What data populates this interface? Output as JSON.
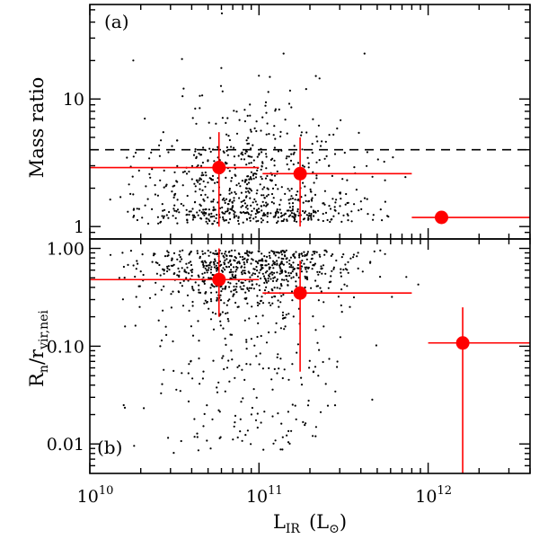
{
  "chart_data": [
    {
      "type": "scatter",
      "panel_label": "(a)",
      "ylabel": "Mass ratio",
      "yscale": "log",
      "ylim": [
        0.8,
        55
      ],
      "xscale": "log",
      "xlim": [
        10000000000.0,
        4000000000000.0
      ],
      "yticks": [
        1,
        10
      ],
      "ytick_labels": [
        "1",
        "10"
      ],
      "reference_line": {
        "y": 4,
        "style": "dashed"
      },
      "summary_points": [
        {
          "x": 58000000000.0,
          "y": 2.9,
          "xerr": [
            10000000000.0,
            100000000000.0
          ],
          "yerr": [
            1.0,
            5.5
          ]
        },
        {
          "x": 175000000000.0,
          "y": 2.6,
          "xerr": [
            105000000000.0,
            800000000000.0
          ],
          "yerr": [
            1.0,
            5.0
          ]
        },
        {
          "x": 1200000000000.0,
          "y": 1.18,
          "xerr": [
            800000000000.0,
            4000000000000.0
          ],
          "yerr": [
            1.18,
            1.18
          ]
        }
      ],
      "points_note": "Cloud of small black dots, roughly 800 galaxies, concentrated at L_IR ~ 3e10 to 3e11 with mass ratios between 1 and ~40."
    },
    {
      "type": "scatter",
      "panel_label": "(b)",
      "ylabel": "R_n/r_vir,nei",
      "ylabel_main": "R",
      "ylabel_sub1": "n",
      "ylabel_mid": "/r",
      "ylabel_sub2": "vir,nei",
      "yscale": "log",
      "ylim": [
        0.005,
        1.25
      ],
      "xscale": "log",
      "xlim": [
        10000000000.0,
        4000000000000.0
      ],
      "yticks": [
        0.01,
        0.1,
        1.0
      ],
      "ytick_labels": [
        "0.01",
        "0.10",
        "1.00"
      ],
      "summary_points": [
        {
          "x": 58000000000.0,
          "y": 0.48,
          "xerr": [
            10000000000.0,
            100000000000.0
          ],
          "yerr": [
            0.2,
            1.0
          ]
        },
        {
          "x": 175000000000.0,
          "y": 0.35,
          "xerr": [
            105000000000.0,
            800000000000.0
          ],
          "yerr": [
            0.055,
            0.75
          ]
        },
        {
          "x": 1600000000000.0,
          "y": 0.108,
          "xerr": [
            1000000000000.0,
            4000000000000.0
          ],
          "yerr": [
            0.005,
            0.25
          ]
        }
      ],
      "points_note": "Dense band of small black dots near R_n/r_vir ~ 0.3-1.0, sparser tail down to ~0.006."
    }
  ],
  "xaxis": {
    "label_main": "L",
    "label_sub": "IR",
    "label_unit_open": "(L",
    "label_unit_sun": "⊙",
    "label_unit_close": ")",
    "ticks": [
      10000000000.0,
      100000000000.0,
      1000000000000.0
    ],
    "tick_base": "10",
    "tick_exponents": [
      "10",
      "11",
      "12"
    ]
  },
  "colors": {
    "summary": "#ff0000",
    "points": "#000000",
    "axes": "#000000"
  }
}
